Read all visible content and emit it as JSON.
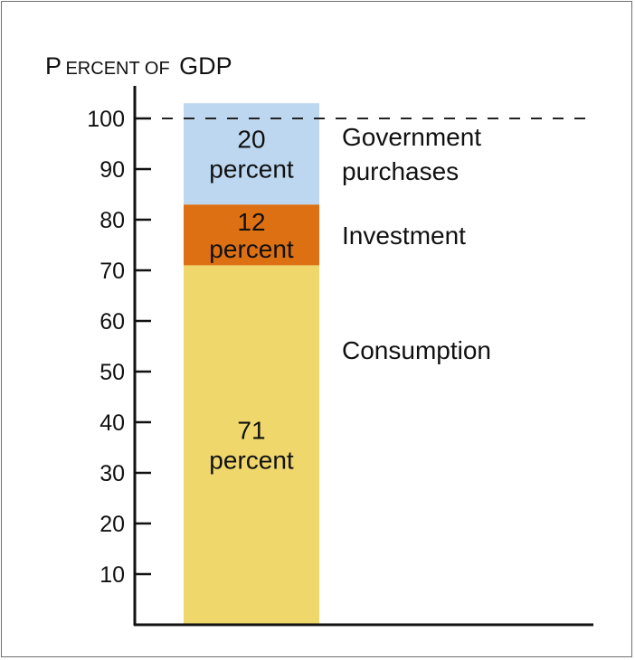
{
  "chart_data": {
    "type": "bar",
    "stacked": true,
    "ylabel_lead": "P",
    "ylabel_small": "ERCENT OF",
    "ylabel_tail": "GDP",
    "ylim": [
      0,
      100
    ],
    "yticks": [
      10,
      20,
      30,
      40,
      50,
      60,
      70,
      80,
      90,
      100
    ],
    "reference_line": 100,
    "grid": false,
    "legend": "labels beside bar",
    "segments": [
      {
        "name": "Consumption",
        "value": 71,
        "label_lines": [
          "71",
          "percent"
        ],
        "side_lines": [
          "Consumption"
        ],
        "color": "#efd76c"
      },
      {
        "name": "Investment",
        "value": 12,
        "label_lines": [
          "12",
          "percent"
        ],
        "side_lines": [
          "Investment"
        ],
        "color": "#dd7013"
      },
      {
        "name": "Government purchases",
        "value": 20,
        "label_lines": [
          "20",
          "percent"
        ],
        "side_lines": [
          "Government",
          "purchases"
        ],
        "color": "#bcd7ef"
      }
    ]
  }
}
